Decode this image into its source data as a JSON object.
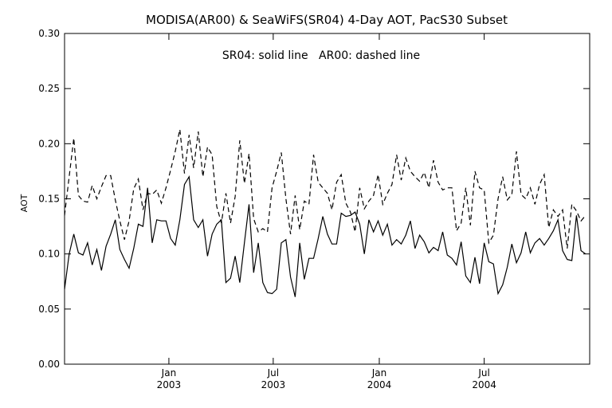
{
  "chart_data": {
    "type": "line",
    "title": "MODISA(AR00) & SeaWiFS(SR04) 4-Day AOT, PacS30 Subset",
    "subtitle": "SR04: solid line   AR00: dashed line",
    "xlabel": "",
    "ylabel": "AOT",
    "xlim": [
      "2002-07-04",
      "2004-12-31"
    ],
    "ylim": [
      0.0,
      0.3
    ],
    "yticks": [
      "0.00",
      "0.05",
      "0.10",
      "0.15",
      "0.20",
      "0.25",
      "0.30"
    ],
    "xticks": [
      {
        "date": "2003-01-01",
        "month": "Jan",
        "year": "2003"
      },
      {
        "date": "2003-07-01",
        "month": "Jul",
        "year": "2003"
      },
      {
        "date": "2004-01-01",
        "month": "Jan",
        "year": "2004"
      },
      {
        "date": "2004-07-01",
        "month": "Jul",
        "year": "2004"
      }
    ],
    "grid": false,
    "legend": "none",
    "series": [
      {
        "name": "SR04",
        "style": "solid",
        "x": [
          "2002-07-04",
          "2002-07-12",
          "2002-07-20",
          "2002-07-28",
          "2002-08-05",
          "2002-08-13",
          "2002-08-21",
          "2002-08-29",
          "2002-09-06",
          "2002-09-14",
          "2002-09-22",
          "2002-09-30",
          "2002-10-08",
          "2002-10-16",
          "2002-10-24",
          "2002-11-01",
          "2002-11-09",
          "2002-11-17",
          "2002-11-25",
          "2002-12-03",
          "2002-12-11",
          "2002-12-19",
          "2002-12-27",
          "2003-01-04",
          "2003-01-12",
          "2003-01-20",
          "2003-01-28",
          "2003-02-05",
          "2003-02-13",
          "2003-02-21",
          "2003-03-01",
          "2003-03-09",
          "2003-03-17",
          "2003-03-25",
          "2003-04-02",
          "2003-04-10",
          "2003-04-18",
          "2003-04-26",
          "2003-05-04",
          "2003-05-12",
          "2003-05-20",
          "2003-05-28",
          "2003-06-05",
          "2003-06-13",
          "2003-06-21",
          "2003-06-29",
          "2003-07-07",
          "2003-07-15",
          "2003-07-23",
          "2003-07-31",
          "2003-08-08",
          "2003-08-16",
          "2003-08-24",
          "2003-09-01",
          "2003-09-09",
          "2003-09-17",
          "2003-09-25",
          "2003-10-03",
          "2003-10-11",
          "2003-10-19",
          "2003-10-27",
          "2003-11-04",
          "2003-11-12",
          "2003-11-20",
          "2003-11-28",
          "2003-12-06",
          "2003-12-14",
          "2003-12-22",
          "2003-12-30",
          "2004-01-07",
          "2004-01-15",
          "2004-01-23",
          "2004-01-31",
          "2004-02-08",
          "2004-02-16",
          "2004-02-24",
          "2004-03-03",
          "2004-03-11",
          "2004-03-19",
          "2004-03-27",
          "2004-04-04",
          "2004-04-12",
          "2004-04-20",
          "2004-04-28",
          "2004-05-06",
          "2004-05-14",
          "2004-05-22",
          "2004-05-30",
          "2004-06-07",
          "2004-06-15",
          "2004-06-23",
          "2004-07-01",
          "2004-07-09",
          "2004-07-17",
          "2004-07-25",
          "2004-08-02",
          "2004-08-10",
          "2004-08-18",
          "2004-08-26",
          "2004-09-03",
          "2004-09-11",
          "2004-09-19",
          "2004-09-27",
          "2004-10-05",
          "2004-10-13",
          "2004-10-21",
          "2004-10-29",
          "2004-11-06",
          "2004-11-14",
          "2004-11-22",
          "2004-11-30",
          "2004-12-08",
          "2004-12-16",
          "2004-12-24"
        ],
        "y": [
          0.068,
          0.1,
          0.118,
          0.101,
          0.099,
          0.11,
          0.09,
          0.104,
          0.085,
          0.107,
          0.118,
          0.131,
          0.104,
          0.095,
          0.087,
          0.105,
          0.127,
          0.125,
          0.16,
          0.11,
          0.131,
          0.13,
          0.13,
          0.114,
          0.108,
          0.131,
          0.163,
          0.17,
          0.131,
          0.124,
          0.131,
          0.098,
          0.118,
          0.127,
          0.131,
          0.074,
          0.078,
          0.098,
          0.074,
          0.11,
          0.145,
          0.083,
          0.11,
          0.074,
          0.065,
          0.064,
          0.068,
          0.11,
          0.113,
          0.079,
          0.061,
          0.11,
          0.077,
          0.096,
          0.096,
          0.114,
          0.134,
          0.118,
          0.109,
          0.109,
          0.137,
          0.134,
          0.135,
          0.138,
          0.127,
          0.1,
          0.131,
          0.12,
          0.13,
          0.117,
          0.127,
          0.108,
          0.113,
          0.109,
          0.117,
          0.13,
          0.105,
          0.117,
          0.111,
          0.101,
          0.106,
          0.103,
          0.12,
          0.099,
          0.096,
          0.09,
          0.111,
          0.08,
          0.074,
          0.097,
          0.073,
          0.11,
          0.093,
          0.091,
          0.064,
          0.072,
          0.088,
          0.109,
          0.092,
          0.101,
          0.12,
          0.101,
          0.11,
          0.114,
          0.108,
          0.114,
          0.121,
          0.131,
          0.103,
          0.095,
          0.094,
          0.135,
          0.103,
          0.1
        ],
        "color": "#000000"
      },
      {
        "name": "AR00",
        "style": "dashed",
        "x": [
          "2002-07-04",
          "2002-07-12",
          "2002-07-20",
          "2002-07-28",
          "2002-08-05",
          "2002-08-13",
          "2002-08-21",
          "2002-08-29",
          "2002-09-06",
          "2002-09-14",
          "2002-09-22",
          "2002-09-30",
          "2002-10-08",
          "2002-10-16",
          "2002-10-24",
          "2002-11-01",
          "2002-11-09",
          "2002-11-17",
          "2002-11-25",
          "2002-12-03",
          "2002-12-11",
          "2002-12-19",
          "2002-12-27",
          "2003-01-04",
          "2003-01-12",
          "2003-01-20",
          "2003-01-28",
          "2003-02-05",
          "2003-02-13",
          "2003-02-21",
          "2003-03-01",
          "2003-03-09",
          "2003-03-17",
          "2003-03-25",
          "2003-04-02",
          "2003-04-10",
          "2003-04-18",
          "2003-04-26",
          "2003-05-04",
          "2003-05-12",
          "2003-05-20",
          "2003-05-28",
          "2003-06-05",
          "2003-06-13",
          "2003-06-21",
          "2003-06-29",
          "2003-07-07",
          "2003-07-15",
          "2003-07-23",
          "2003-07-31",
          "2003-08-08",
          "2003-08-16",
          "2003-08-24",
          "2003-09-01",
          "2003-09-09",
          "2003-09-17",
          "2003-09-25",
          "2003-10-03",
          "2003-10-11",
          "2003-10-19",
          "2003-10-27",
          "2003-11-04",
          "2003-11-12",
          "2003-11-20",
          "2003-11-28",
          "2003-12-06",
          "2003-12-14",
          "2003-12-22",
          "2003-12-30",
          "2004-01-07",
          "2004-01-15",
          "2004-01-23",
          "2004-01-31",
          "2004-02-08",
          "2004-02-16",
          "2004-02-24",
          "2004-03-03",
          "2004-03-11",
          "2004-03-19",
          "2004-03-27",
          "2004-04-04",
          "2004-04-12",
          "2004-04-20",
          "2004-04-28",
          "2004-05-06",
          "2004-05-14",
          "2004-05-22",
          "2004-05-30",
          "2004-06-07",
          "2004-06-15",
          "2004-06-23",
          "2004-07-01",
          "2004-07-09",
          "2004-07-17",
          "2004-07-25",
          "2004-08-02",
          "2004-08-10",
          "2004-08-18",
          "2004-08-26",
          "2004-09-03",
          "2004-09-11",
          "2004-09-19",
          "2004-09-27",
          "2004-10-05",
          "2004-10-13",
          "2004-10-21",
          "2004-10-29",
          "2004-11-06",
          "2004-11-14",
          "2004-11-22",
          "2004-11-30",
          "2004-12-08",
          "2004-12-16",
          "2004-12-24"
        ],
        "y": [
          0.135,
          0.17,
          0.205,
          0.153,
          0.148,
          0.147,
          0.162,
          0.15,
          0.161,
          0.171,
          0.171,
          0.149,
          0.13,
          0.113,
          0.13,
          0.159,
          0.168,
          0.14,
          0.155,
          0.154,
          0.158,
          0.146,
          0.16,
          0.176,
          0.193,
          0.213,
          0.173,
          0.208,
          0.178,
          0.211,
          0.17,
          0.197,
          0.19,
          0.143,
          0.128,
          0.155,
          0.128,
          0.152,
          0.203,
          0.164,
          0.191,
          0.132,
          0.12,
          0.123,
          0.12,
          0.16,
          0.175,
          0.192,
          0.15,
          0.118,
          0.153,
          0.122,
          0.148,
          0.145,
          0.19,
          0.165,
          0.16,
          0.155,
          0.14,
          0.165,
          0.172,
          0.146,
          0.138,
          0.12,
          0.16,
          0.141,
          0.148,
          0.153,
          0.172,
          0.145,
          0.155,
          0.163,
          0.19,
          0.167,
          0.187,
          0.175,
          0.17,
          0.166,
          0.174,
          0.16,
          0.185,
          0.165,
          0.158,
          0.16,
          0.16,
          0.121,
          0.128,
          0.16,
          0.126,
          0.175,
          0.16,
          0.158,
          0.11,
          0.117,
          0.15,
          0.17,
          0.149,
          0.154,
          0.193,
          0.154,
          0.15,
          0.16,
          0.145,
          0.163,
          0.172,
          0.124,
          0.14,
          0.134,
          0.14,
          0.105,
          0.145,
          0.139,
          0.13,
          0.135
        ],
        "color": "#000000"
      }
    ]
  }
}
